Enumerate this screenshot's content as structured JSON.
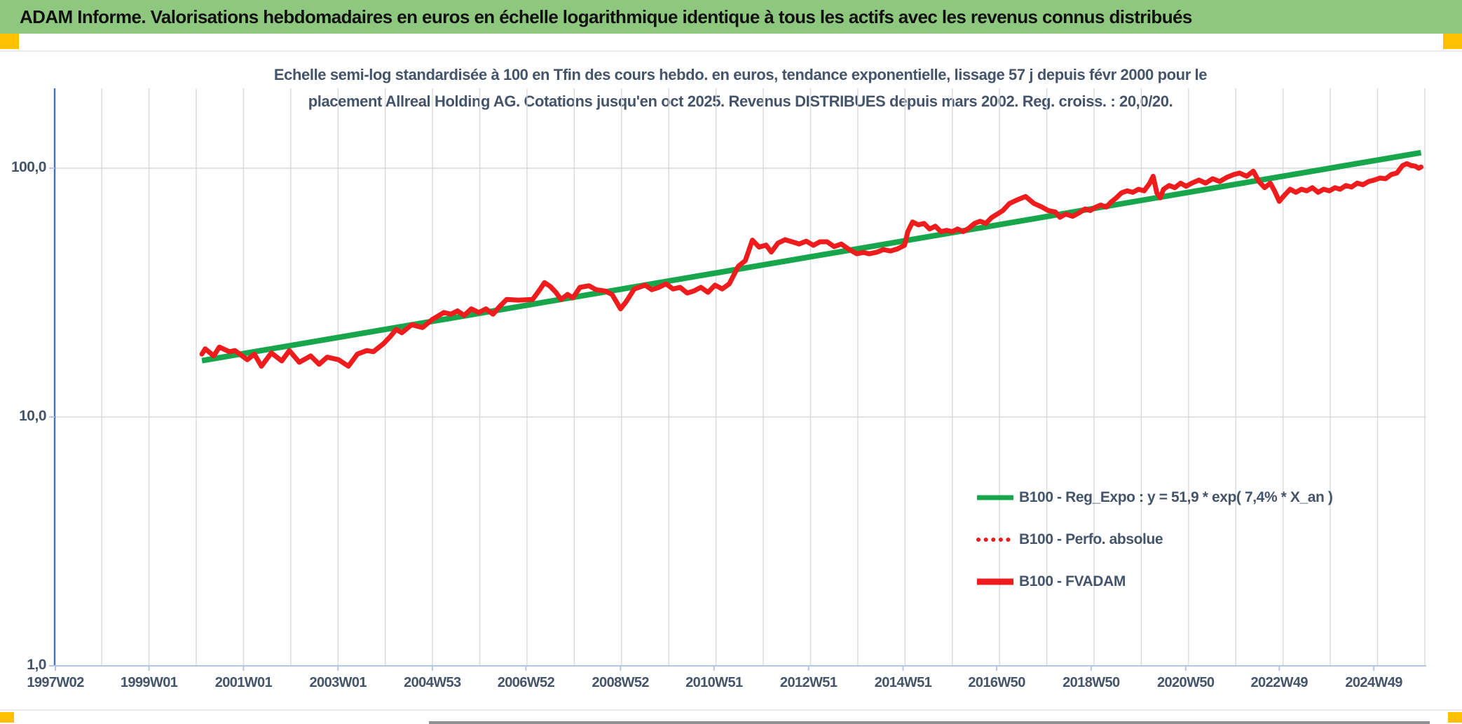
{
  "title_bar": {
    "text": "ADAM Informe. Valorisations hebdomadaires en euros en échelle logarithmique identique à tous les actifs avec les revenus connus distribués",
    "bg_color": "#8DC87E",
    "corner_color": "#FFC000"
  },
  "chart": {
    "title_line1": "Echelle semi-log standardisée à 100 en Tfin des cours hebdo. en euros, tendance exponentielle, lissage 57 j depuis févr 2000 pour le",
    "title_line2": "placement Allreal Holding AG. Cotations jusqu'en oct 2025. Revenus DISTRIBUES depuis mars 2002. Reg. croiss. : 20,0/20.",
    "colors": {
      "title_text": "#44546A",
      "gridline": "#D9D9D9",
      "y_axis_line": "#4472C4",
      "x_axis_line": "#B4C6E7",
      "trend_green": "#18A64D",
      "series_red": "#EE1C1C"
    }
  },
  "legend": [
    {
      "label": "B100 - Reg_Expo : y = 51,9 * exp( 7,4% *  X_an )",
      "style": "solid",
      "color": "#18A64D"
    },
    {
      "label": "B100 - Perfo. absolue",
      "style": "dotted",
      "color": "#EE1C1C"
    },
    {
      "label": "B100 - FVADAM",
      "style": "solid-thick",
      "color": "#EE1C1C"
    }
  ],
  "chart_data": {
    "type": "line",
    "x_axis": {
      "ticks": [
        "1997W02",
        "1999W01",
        "2001W01",
        "2003W01",
        "2004W53",
        "2006W52",
        "2008W52",
        "2010W51",
        "2012W51",
        "2014W51",
        "2016W50",
        "2018W50",
        "2020W50",
        "2022W49",
        "2024W49"
      ],
      "unit": "ISO week (yearWweek)",
      "range_years": [
        1997.0,
        2026.0
      ]
    },
    "y_axis": {
      "scale": "log10",
      "ticks": [
        "100,0",
        "10,0",
        "1,0"
      ],
      "tick_values": [
        100,
        10,
        1
      ],
      "range": [
        1,
        210
      ]
    },
    "grid": "vertical yearly + horizontal decades",
    "legend_position": "inside lower right",
    "series": [
      {
        "name": "B100 - Reg_Expo",
        "role": "exponential trend",
        "formula": "y = 51,9 * exp( 7,4% * X_an )",
        "style": "solid",
        "color": "#18A64D",
        "points": [
          [
            2000.12,
            16.85
          ],
          [
            2025.92,
            115.5
          ]
        ]
      },
      {
        "name": "B100 - Perfo. absolue",
        "style": "dotted",
        "color": "#EE1C1C",
        "coincides_with": "B100 - FVADAM"
      },
      {
        "name": "B100 - FVADAM",
        "style": "solid",
        "color": "#EE1C1C",
        "points": [
          [
            2000.12,
            17.9
          ],
          [
            2000.19,
            18.8
          ],
          [
            2000.37,
            17.6
          ],
          [
            2000.49,
            19.1
          ],
          [
            2000.7,
            18.3
          ],
          [
            2000.82,
            18.5
          ],
          [
            2001.08,
            17.0
          ],
          [
            2001.23,
            17.9
          ],
          [
            2001.38,
            16.0
          ],
          [
            2001.59,
            18.1
          ],
          [
            2001.81,
            16.8
          ],
          [
            2001.97,
            18.5
          ],
          [
            2002.18,
            16.6
          ],
          [
            2002.42,
            17.6
          ],
          [
            2002.6,
            16.3
          ],
          [
            2002.77,
            17.4
          ],
          [
            2003.01,
            17.0
          ],
          [
            2003.22,
            16.0
          ],
          [
            2003.41,
            17.9
          ],
          [
            2003.61,
            18.5
          ],
          [
            2003.75,
            18.3
          ],
          [
            2003.96,
            19.7
          ],
          [
            2004.11,
            21.1
          ],
          [
            2004.23,
            22.5
          ],
          [
            2004.35,
            21.8
          ],
          [
            2004.56,
            23.5
          ],
          [
            2004.79,
            22.9
          ],
          [
            2005.0,
            24.7
          ],
          [
            2005.24,
            26.3
          ],
          [
            2005.39,
            25.9
          ],
          [
            2005.53,
            26.7
          ],
          [
            2005.67,
            25.6
          ],
          [
            2005.82,
            27.2
          ],
          [
            2005.98,
            26.3
          ],
          [
            2006.13,
            27.2
          ],
          [
            2006.28,
            25.9
          ],
          [
            2006.42,
            27.8
          ],
          [
            2006.57,
            29.7
          ],
          [
            2006.82,
            29.5
          ],
          [
            2007.12,
            29.7
          ],
          [
            2007.27,
            32.5
          ],
          [
            2007.37,
            34.7
          ],
          [
            2007.49,
            33.5
          ],
          [
            2007.61,
            31.7
          ],
          [
            2007.72,
            29.7
          ],
          [
            2007.86,
            31.1
          ],
          [
            2007.97,
            30.1
          ],
          [
            2008.12,
            33.2
          ],
          [
            2008.31,
            33.7
          ],
          [
            2008.46,
            32.5
          ],
          [
            2008.65,
            32.1
          ],
          [
            2008.8,
            31.1
          ],
          [
            2008.98,
            27.2
          ],
          [
            2009.1,
            29.1
          ],
          [
            2009.27,
            32.7
          ],
          [
            2009.5,
            33.9
          ],
          [
            2009.64,
            32.5
          ],
          [
            2009.79,
            33.2
          ],
          [
            2009.94,
            34.3
          ],
          [
            2010.09,
            32.7
          ],
          [
            2010.24,
            33.2
          ],
          [
            2010.39,
            31.5
          ],
          [
            2010.53,
            32.1
          ],
          [
            2010.68,
            33.2
          ],
          [
            2010.83,
            31.7
          ],
          [
            2010.98,
            33.9
          ],
          [
            2011.13,
            32.7
          ],
          [
            2011.28,
            34.3
          ],
          [
            2011.47,
            40.3
          ],
          [
            2011.62,
            42.5
          ],
          [
            2011.77,
            51.4
          ],
          [
            2011.91,
            48.2
          ],
          [
            2012.06,
            49.1
          ],
          [
            2012.17,
            46.0
          ],
          [
            2012.31,
            50.0
          ],
          [
            2012.46,
            51.6
          ],
          [
            2012.61,
            50.6
          ],
          [
            2012.76,
            49.6
          ],
          [
            2012.91,
            50.9
          ],
          [
            2013.06,
            49.0
          ],
          [
            2013.2,
            50.6
          ],
          [
            2013.35,
            50.6
          ],
          [
            2013.5,
            48.4
          ],
          [
            2013.65,
            49.6
          ],
          [
            2013.8,
            47.4
          ],
          [
            2013.98,
            45.3
          ],
          [
            2014.12,
            45.9
          ],
          [
            2014.24,
            45.3
          ],
          [
            2014.39,
            45.9
          ],
          [
            2014.54,
            47.1
          ],
          [
            2014.69,
            46.5
          ],
          [
            2014.84,
            47.4
          ],
          [
            2014.99,
            49.0
          ],
          [
            2015.06,
            55.6
          ],
          [
            2015.16,
            60.8
          ],
          [
            2015.28,
            59.2
          ],
          [
            2015.4,
            60.0
          ],
          [
            2015.52,
            57.0
          ],
          [
            2015.64,
            58.5
          ],
          [
            2015.76,
            55.6
          ],
          [
            2015.88,
            56.3
          ],
          [
            2016.0,
            55.6
          ],
          [
            2016.11,
            57.0
          ],
          [
            2016.23,
            55.6
          ],
          [
            2016.35,
            57.4
          ],
          [
            2016.47,
            60.0
          ],
          [
            2016.59,
            61.2
          ],
          [
            2016.71,
            60.0
          ],
          [
            2016.83,
            63.3
          ],
          [
            2016.95,
            65.4
          ],
          [
            2017.07,
            67.6
          ],
          [
            2017.21,
            72.1
          ],
          [
            2017.36,
            74.4
          ],
          [
            2017.55,
            77.0
          ],
          [
            2017.73,
            72.1
          ],
          [
            2017.88,
            70.1
          ],
          [
            2018.03,
            67.6
          ],
          [
            2018.18,
            66.7
          ],
          [
            2018.28,
            63.5
          ],
          [
            2018.4,
            65.4
          ],
          [
            2018.55,
            64.1
          ],
          [
            2018.69,
            66.3
          ],
          [
            2018.81,
            68.6
          ],
          [
            2018.92,
            67.6
          ],
          [
            2019.02,
            69.5
          ],
          [
            2019.14,
            71.1
          ],
          [
            2019.26,
            69.8
          ],
          [
            2019.36,
            73.1
          ],
          [
            2019.47,
            76.0
          ],
          [
            2019.58,
            79.6
          ],
          [
            2019.7,
            81.1
          ],
          [
            2019.82,
            80.0
          ],
          [
            2019.94,
            82.3
          ],
          [
            2020.06,
            81.1
          ],
          [
            2020.18,
            87.1
          ],
          [
            2020.25,
            92.8
          ],
          [
            2020.33,
            79.6
          ],
          [
            2020.4,
            76.0
          ],
          [
            2020.47,
            82.3
          ],
          [
            2020.59,
            85.2
          ],
          [
            2020.71,
            83.5
          ],
          [
            2020.83,
            87.1
          ],
          [
            2020.95,
            84.6
          ],
          [
            2021.07,
            87.1
          ],
          [
            2021.22,
            89.6
          ],
          [
            2021.36,
            87.1
          ],
          [
            2021.51,
            90.7
          ],
          [
            2021.66,
            88.4
          ],
          [
            2021.81,
            91.9
          ],
          [
            2021.96,
            94.3
          ],
          [
            2022.08,
            95.6
          ],
          [
            2022.23,
            92.8
          ],
          [
            2022.37,
            97.3
          ],
          [
            2022.49,
            88.4
          ],
          [
            2022.61,
            83.5
          ],
          [
            2022.73,
            87.1
          ],
          [
            2022.82,
            81.1
          ],
          [
            2022.92,
            73.6
          ],
          [
            2023.03,
            77.9
          ],
          [
            2023.15,
            82.3
          ],
          [
            2023.27,
            80.0
          ],
          [
            2023.39,
            82.3
          ],
          [
            2023.5,
            81.1
          ],
          [
            2023.62,
            83.5
          ],
          [
            2023.74,
            80.0
          ],
          [
            2023.86,
            82.3
          ],
          [
            2023.98,
            81.1
          ],
          [
            2024.1,
            83.5
          ],
          [
            2024.21,
            82.3
          ],
          [
            2024.33,
            85.2
          ],
          [
            2024.45,
            84.0
          ],
          [
            2024.57,
            87.1
          ],
          [
            2024.69,
            85.8
          ],
          [
            2024.81,
            88.4
          ],
          [
            2024.93,
            89.6
          ],
          [
            2025.05,
            91.3
          ],
          [
            2025.17,
            90.7
          ],
          [
            2025.29,
            94.3
          ],
          [
            2025.41,
            95.6
          ],
          [
            2025.53,
            102.5
          ],
          [
            2025.62,
            104.3
          ],
          [
            2025.71,
            102.5
          ],
          [
            2025.8,
            101.9
          ],
          [
            2025.87,
            100.0
          ],
          [
            2025.92,
            101.2
          ]
        ]
      }
    ]
  }
}
